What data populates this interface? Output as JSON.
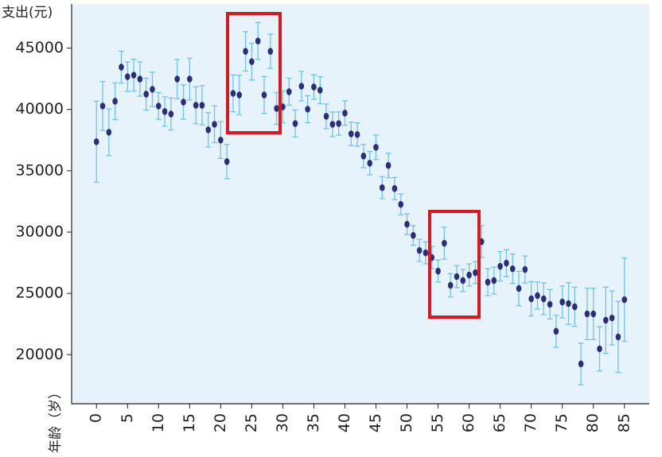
{
  "chart_data": {
    "type": "scatter",
    "y_label": "支出(元)",
    "x_label": "年龄（岁）",
    "x": [
      0,
      1,
      2,
      3,
      4,
      5,
      6,
      7,
      8,
      9,
      10,
      11,
      12,
      13,
      14,
      15,
      16,
      17,
      18,
      19,
      20,
      21,
      22,
      23,
      24,
      25,
      26,
      27,
      28,
      29,
      30,
      31,
      32,
      33,
      34,
      35,
      36,
      37,
      38,
      39,
      40,
      41,
      42,
      43,
      44,
      45,
      46,
      47,
      48,
      49,
      50,
      51,
      52,
      53,
      54,
      55,
      56,
      57,
      58,
      59,
      60,
      61,
      62,
      63,
      64,
      65,
      66,
      67,
      68,
      69,
      70,
      71,
      72,
      73,
      74,
      75,
      76,
      77,
      78,
      79,
      80,
      81,
      82,
      83,
      84,
      85
    ],
    "values": [
      37370,
      40280,
      38140,
      40670,
      43450,
      42670,
      42800,
      42480,
      41250,
      41640,
      40280,
      39830,
      39630,
      42480,
      40600,
      42480,
      40340,
      40340,
      38340,
      38790,
      37500,
      35750,
      41310,
      41180,
      44740,
      43900,
      45580,
      41180,
      44740,
      40080,
      40210,
      41440,
      38850,
      41900,
      40020,
      41830,
      41570,
      39440,
      38790,
      38850,
      39700,
      38010,
      37950,
      36200,
      35620,
      36910,
      33620,
      35430,
      33550,
      32260,
      30640,
      29730,
      28500,
      28310,
      27920,
      26820,
      29090,
      25660,
      26370,
      26050,
      26500,
      26690,
      29220,
      25920,
      26050,
      27210,
      27470,
      27010,
      25400,
      26950,
      24560,
      24820,
      24560,
      24110,
      21910,
      24300,
      24170,
      23910,
      19250,
      23330,
      23330,
      20480,
      22810,
      23000,
      21450,
      24490
    ],
    "errors": [
      3300,
      2000,
      1900,
      1500,
      1300,
      1200,
      1300,
      1400,
      1300,
      1400,
      1100,
      1200,
      1300,
      1600,
      1400,
      1700,
      1500,
      1600,
      1400,
      1500,
      1500,
      1400,
      1500,
      1600,
      1600,
      1500,
      1500,
      1500,
      1400,
      1300,
      1300,
      1100,
      1100,
      1200,
      1100,
      1000,
      1100,
      1000,
      1000,
      950,
      1000,
      950,
      950,
      950,
      950,
      1000,
      900,
      1000,
      900,
      850,
      850,
      800,
      900,
      900,
      900,
      900,
      1300,
      950,
      900,
      900,
      900,
      900,
      1300,
      1100,
      1100,
      1200,
      1100,
      1200,
      1400,
      1100,
      1400,
      1100,
      1300,
      1200,
      1300,
      1300,
      1700,
      1600,
      1700,
      2100,
      2100,
      1800,
      2700,
      2200,
      2900,
      3400
    ],
    "point_color": "#2b2f7a",
    "error_color": "#6fc3e8",
    "background": "#e6f3fb",
    "xlim": [
      -4,
      89
    ],
    "ylim": [
      16000,
      48600
    ],
    "xticks": [
      0,
      5,
      10,
      15,
      20,
      25,
      30,
      35,
      40,
      45,
      50,
      55,
      60,
      65,
      70,
      75,
      80,
      85
    ],
    "yticks": [
      20000,
      25000,
      30000,
      35000,
      40000,
      45000
    ]
  }
}
